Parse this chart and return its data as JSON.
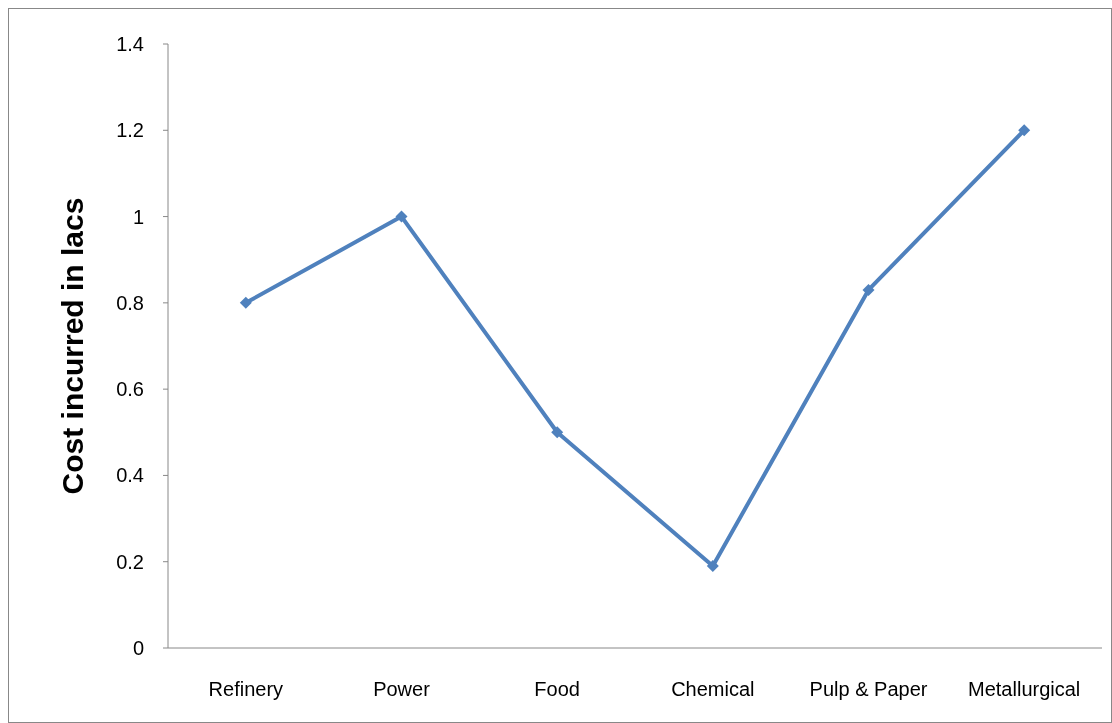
{
  "chart_data": {
    "type": "line",
    "ylabel": "Cost incurred in lacs",
    "categories": [
      "Refinery",
      "Power",
      "Food",
      "Chemical",
      "Pulp & Paper",
      "Metallurgical"
    ],
    "series": [
      {
        "color": "#4f81bd",
        "values": [
          0.8,
          1.0,
          0.5,
          0.19,
          0.83,
          1.2
        ]
      }
    ],
    "ylim": [
      0,
      1.4
    ],
    "yticks": [
      0,
      0.2,
      0.4,
      0.6,
      0.8,
      1,
      1.2,
      1.4
    ],
    "marker": "diamond",
    "line_style": "solid"
  }
}
